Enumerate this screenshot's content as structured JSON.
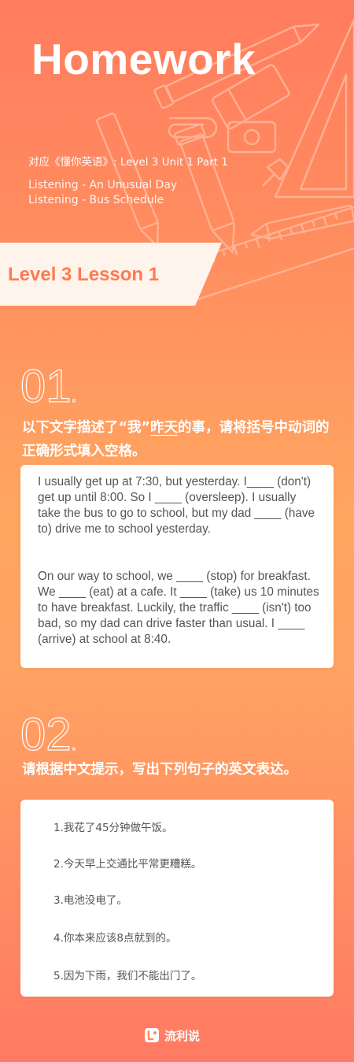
{
  "header": {
    "title": "Homework",
    "source_prefix": "对应《懂你英语》: ",
    "source_detail": "Level 3 Unit 1 Part 1",
    "sub_items": [
      "Listening - An Unusual Day",
      "Listening - Bus Schedule"
    ]
  },
  "lesson": {
    "label": "Level 3 Lesson 1"
  },
  "section1": {
    "number": "01",
    "dot": ".",
    "instruction_before": "以下文字描述了“我”",
    "instruction_underlined": "昨天",
    "instruction_after": "的事，请将括号中动词的正确形式填入空格。",
    "paragraph1": "I usually get up at 7:30, but yesterday. I____ (don't) get up until 8:00. So I ____ (oversleep). I usually take the bus to go to school, but my dad  ____ (have to) drive me to school yesterday.",
    "paragraph2": "On our way to school, we ____ (stop) for breakfast. We ____ (eat) at a cafe. It ____ (take) us 10 minutes to have breakfast. Luckily, the traffic ____ (isn't) too bad, so my dad can drive faster than usual. I ____ (arrive) at school at 8:40."
  },
  "section2": {
    "number": "02",
    "dot": ".",
    "instruction": "请根据中文提示，写出下列句子的英文表达。",
    "questions": [
      "1.我花了45分钟做午饭。",
      "2.今天早上交通比平常更糟糕。",
      "3.电池没电了。",
      "4.你本来应该8点就到的。",
      "5.因为下雨，我们不能出门了。"
    ]
  },
  "footer": {
    "brand": "流利说"
  },
  "colors": {
    "accent": "#ff7a52",
    "banner": "#fff4ec",
    "card": "#ffffff"
  }
}
